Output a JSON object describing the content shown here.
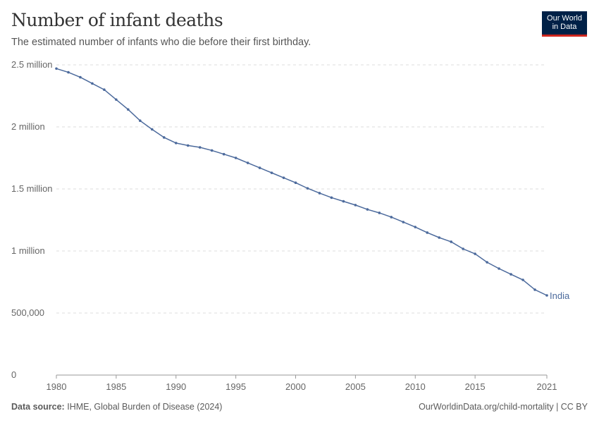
{
  "header": {
    "title": "Number of infant deaths",
    "subtitle": "The estimated number of infants who die before their first birthday.",
    "logo_text": "Our World in Data"
  },
  "footer": {
    "source_label": "Data source:",
    "source": "IHME, Global Burden of Disease (2024)",
    "link": "OurWorldinData.org/child-mortality | CC BY"
  },
  "colors": {
    "series": "#4c6a9c",
    "logo_bg": "#002147",
    "logo_accent": "#ce261e"
  },
  "chart_data": {
    "type": "line",
    "title": "Number of infant deaths",
    "xlim": [
      1980,
      2021
    ],
    "ylim": [
      0,
      2500000
    ],
    "grid": "horizontal dashed",
    "x_ticks": [
      1980,
      1985,
      1990,
      1995,
      2000,
      2005,
      2010,
      2015,
      2021
    ],
    "x_tick_labels": [
      "1980",
      "1985",
      "1990",
      "1995",
      "2000",
      "2005",
      "2010",
      "2015",
      "2021"
    ],
    "y_ticks": [
      0,
      500000,
      1000000,
      1500000,
      2000000,
      2500000
    ],
    "y_tick_labels": [
      "0",
      "500,000",
      "1 million",
      "1.5 million",
      "2 million",
      "2.5 million"
    ],
    "series": [
      {
        "name": "India",
        "x": [
          1980,
          1981,
          1982,
          1983,
          1984,
          1985,
          1986,
          1987,
          1988,
          1989,
          1990,
          1991,
          1992,
          1993,
          1994,
          1995,
          1996,
          1997,
          1998,
          1999,
          2000,
          2001,
          2002,
          2003,
          2004,
          2005,
          2006,
          2007,
          2008,
          2009,
          2010,
          2011,
          2012,
          2013,
          2014,
          2015,
          2016,
          2017,
          2018,
          2019,
          2020,
          2021
        ],
        "values": [
          2470000,
          2440000,
          2400000,
          2350000,
          2300000,
          2220000,
          2140000,
          2050000,
          1980000,
          1915000,
          1870000,
          1850000,
          1835000,
          1810000,
          1780000,
          1750000,
          1710000,
          1670000,
          1630000,
          1590000,
          1550000,
          1505000,
          1466000,
          1430000,
          1400000,
          1370000,
          1335000,
          1307000,
          1273000,
          1233000,
          1193000,
          1148000,
          1108000,
          1074000,
          1017000,
          977000,
          909000,
          858000,
          812000,
          767000,
          688000,
          642000
        ]
      }
    ]
  }
}
